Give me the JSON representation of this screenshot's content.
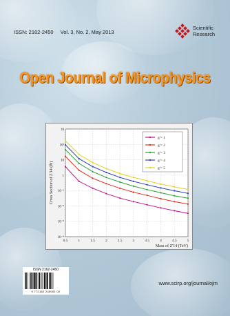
{
  "cover": {
    "issn": "ISSN: 2162-2450",
    "volume": "Vol. 3, No. 2, May 2013",
    "publisher_line1": "Scientific",
    "publisher_line2": "Research",
    "title": "Open Journal of Microphysics",
    "url": "www.scirp.org/journal/ojm",
    "barcode_issn": "ISSN 2162-2450",
    "barcode_digits": "9 772162 245001 02"
  },
  "colors": {
    "title": "#f7941d",
    "logo": "#c4161c"
  },
  "chart_data": {
    "type": "line",
    "xlabel": "Mass of Z'14 (TeV)",
    "ylabel": "Cross Section of Z'14 (fb)",
    "xlim": [
      0.5,
      5
    ],
    "ylim_log10": [
      -1,
      2
    ],
    "x_ticks": [
      "0.5",
      "1",
      "1.5",
      "2",
      "2.5",
      "3",
      "3.5",
      "4",
      "4.5",
      "5"
    ],
    "y_ticks": [
      "10",
      "10²",
      "10",
      "1",
      "10⁻¹",
      "10⁻²",
      "10⁻³",
      "10⁻⁴"
    ],
    "series": [
      {
        "name": "g'= 1",
        "color": "#c0138c",
        "x": [
          0.5,
          1,
          1.5,
          2,
          2.5,
          3,
          3.5,
          4,
          4.5,
          5
        ],
        "y": [
          0.8,
          0.12,
          0.05,
          0.025,
          0.014,
          0.009,
          0.006,
          0.004,
          0.0028,
          0.002
        ]
      },
      {
        "name": "g'= 2",
        "color": "#e0301e",
        "x": [
          0.5,
          1,
          1.5,
          2,
          2.5,
          3,
          3.5,
          4,
          4.5,
          5
        ],
        "y": [
          3,
          0.5,
          0.18,
          0.09,
          0.05,
          0.03,
          0.02,
          0.013,
          0.009,
          0.0065
        ]
      },
      {
        "name": "g'= 3",
        "color": "#2e9e3a",
        "x": [
          0.5,
          1,
          1.5,
          2,
          2.5,
          3,
          3.5,
          4,
          4.5,
          5
        ],
        "y": [
          7,
          1.2,
          0.42,
          0.2,
          0.11,
          0.065,
          0.042,
          0.028,
          0.019,
          0.014
        ]
      },
      {
        "name": "g'= 4",
        "color": "#2a3fb5",
        "x": [
          0.5,
          1,
          1.5,
          2,
          2.5,
          3,
          3.5,
          4,
          4.5,
          5
        ],
        "y": [
          13,
          2.2,
          0.8,
          0.38,
          0.2,
          0.12,
          0.078,
          0.052,
          0.036,
          0.026
        ]
      },
      {
        "name": "g'= 5",
        "color": "#e6d21a",
        "x": [
          0.5,
          1,
          1.5,
          2,
          2.5,
          3,
          3.5,
          4,
          4.5,
          5
        ],
        "y": [
          22,
          3.8,
          1.35,
          0.62,
          0.33,
          0.2,
          0.13,
          0.085,
          0.06,
          0.043
        ]
      }
    ],
    "legend_position": "top-right",
    "grid": true
  }
}
